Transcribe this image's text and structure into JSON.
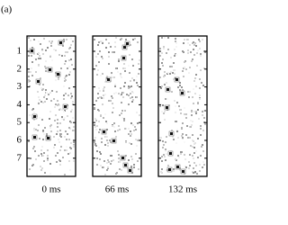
{
  "panel_label": "(a)",
  "y_ticks": [
    "1",
    "2",
    "3",
    "4",
    "5",
    "6",
    "7"
  ],
  "panels": [
    {
      "label": "0 ms"
    },
    {
      "label": "66 ms"
    },
    {
      "label": "132 ms"
    }
  ]
}
